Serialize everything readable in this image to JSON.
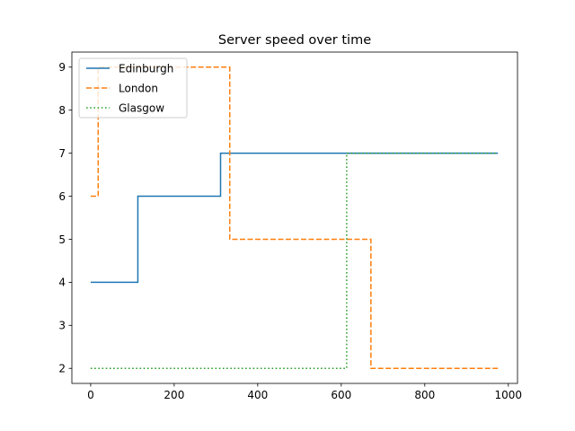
{
  "chart_data": {
    "type": "line",
    "title": "Server speed over time",
    "xlabel": "",
    "ylabel": "",
    "xlim": [
      -45,
      1022
    ],
    "ylim": [
      1.65,
      9.35
    ],
    "x_ticks": [
      0,
      200,
      400,
      600,
      800,
      1000
    ],
    "y_ticks": [
      2,
      3,
      4,
      5,
      6,
      7,
      8,
      9
    ],
    "step": "post",
    "grid": false,
    "legend_position": "top-left",
    "series": [
      {
        "name": "Edinburgh",
        "color": "#1f77b4",
        "dash": "solid",
        "points": [
          [
            0,
            4
          ],
          [
            113,
            6
          ],
          [
            311,
            7
          ],
          [
            975,
            7
          ]
        ]
      },
      {
        "name": "London",
        "color": "#ff7f0e",
        "dash": "dashed",
        "points": [
          [
            0,
            6
          ],
          [
            18,
            9
          ],
          [
            333,
            5
          ],
          [
            671,
            2
          ],
          [
            975,
            2
          ]
        ]
      },
      {
        "name": "Glasgow",
        "color": "#2ca02c",
        "dash": "dotted",
        "points": [
          [
            0,
            2
          ],
          [
            613,
            7
          ],
          [
            975,
            7
          ]
        ]
      }
    ]
  }
}
